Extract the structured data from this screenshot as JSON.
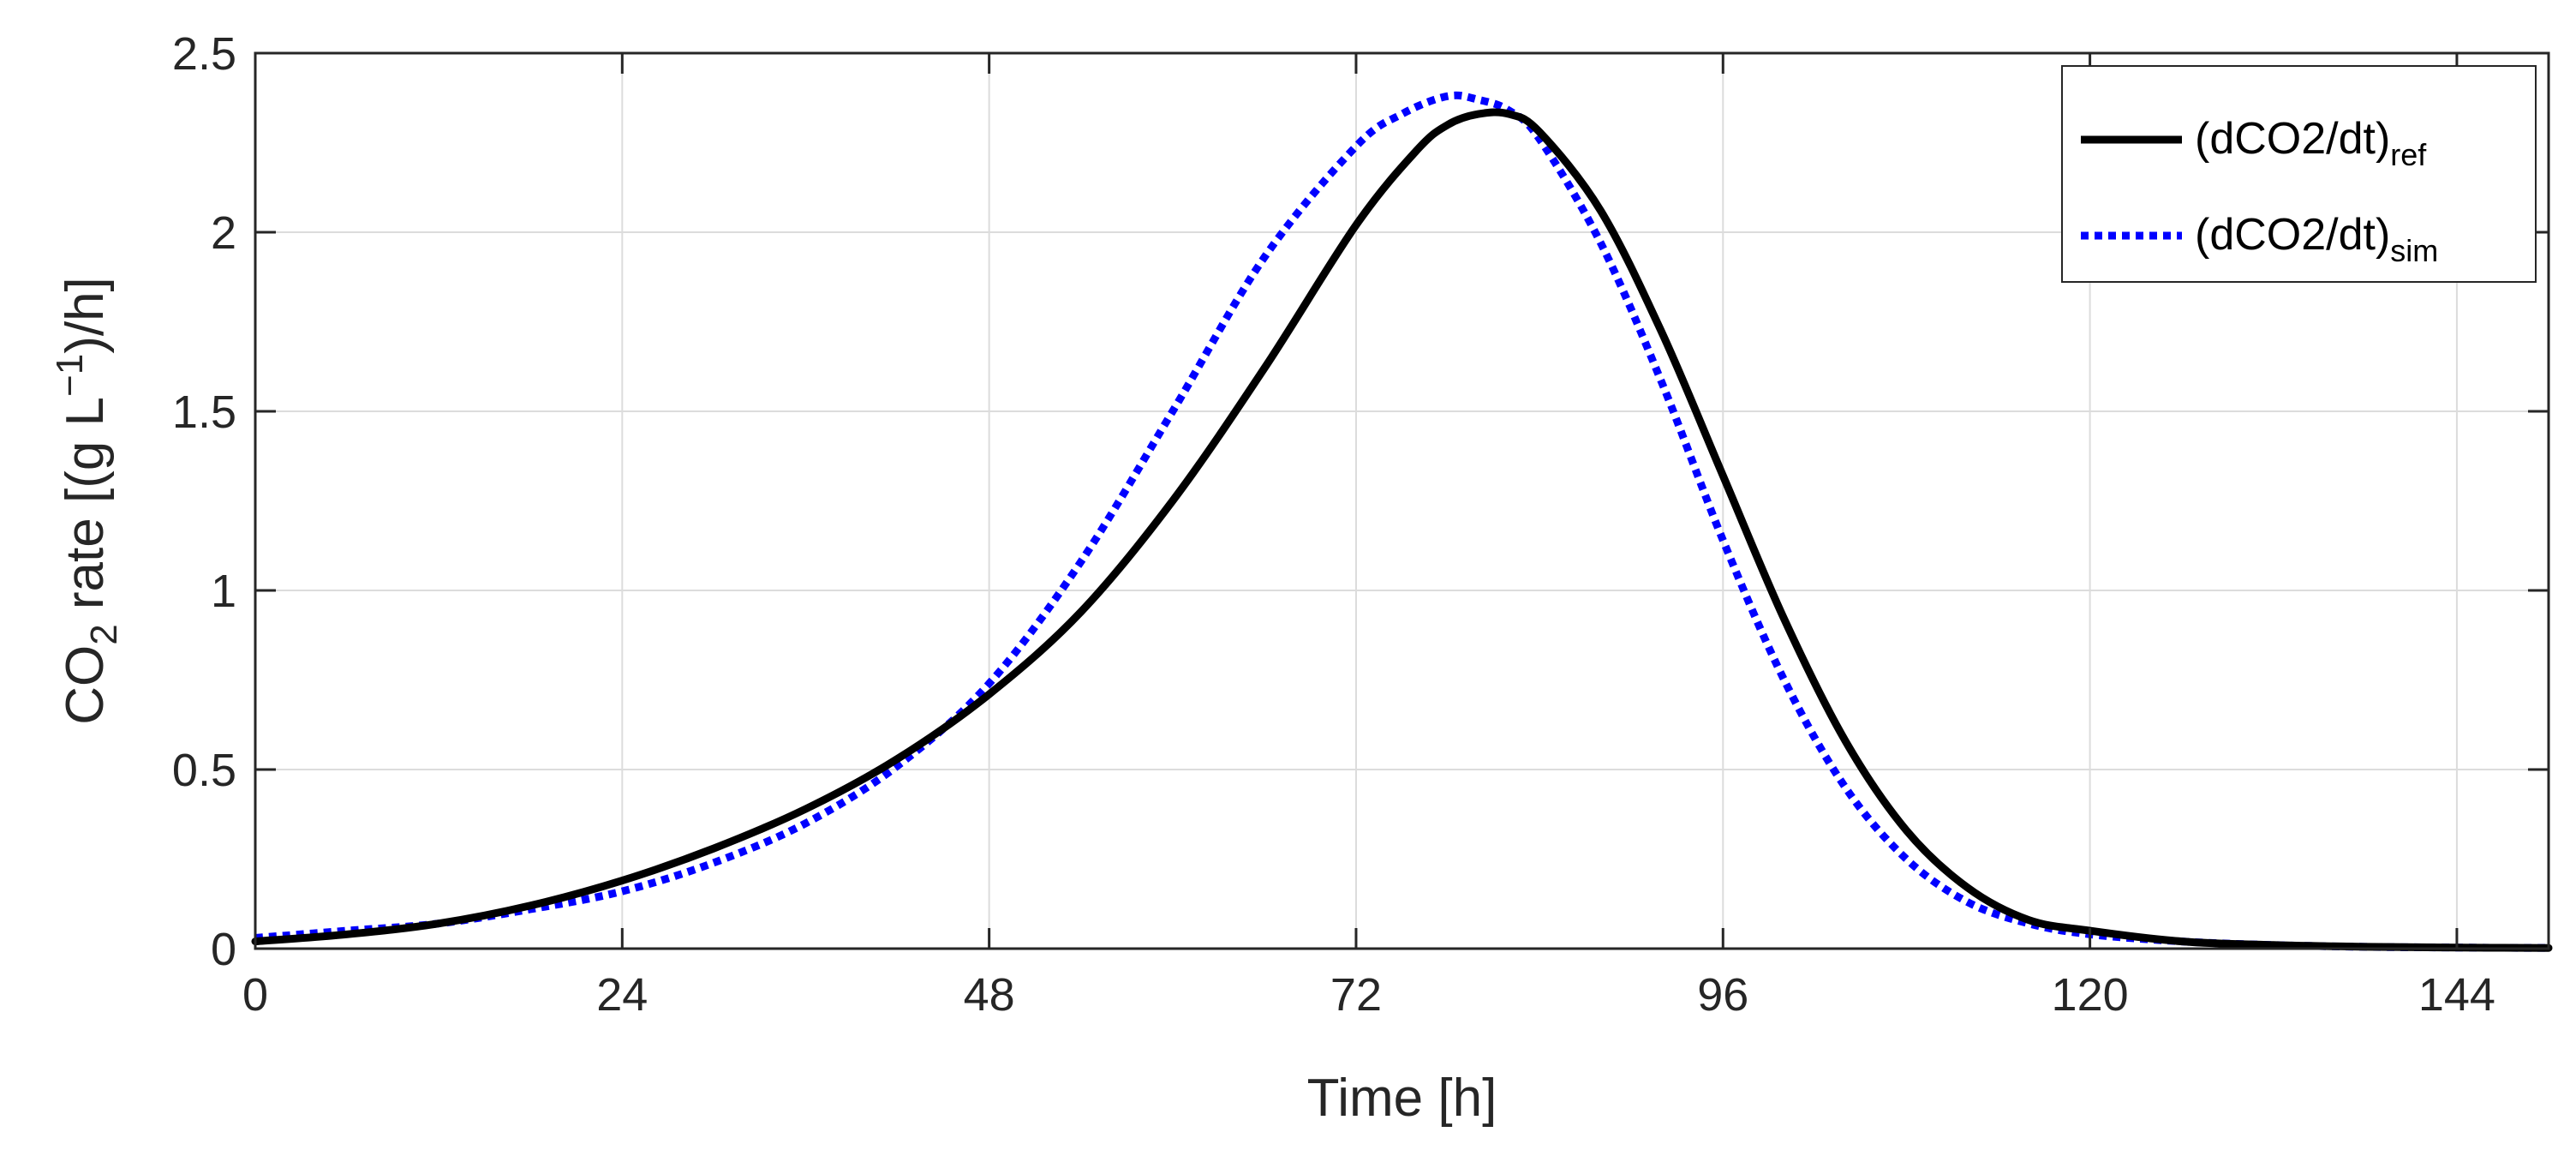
{
  "chart_data": {
    "type": "line",
    "title": "",
    "xlabel": "Time [h]",
    "ylabel": {
      "prefix": "CO",
      "subscript": "2",
      "middle": " rate [(g L",
      "superscript": "−1",
      "suffix": ")/h]"
    },
    "xlim": [
      0,
      150
    ],
    "ylim": [
      0,
      2.5
    ],
    "grid": true,
    "xticks": [
      0,
      24,
      48,
      72,
      96,
      120,
      144
    ],
    "xtick_labels": [
      "0",
      "24",
      "48",
      "72",
      "96",
      "120",
      "144"
    ],
    "yticks": [
      0,
      0.5,
      1,
      1.5,
      2,
      2.5
    ],
    "ytick_labels": [
      "0",
      "0.5",
      "1",
      "1.5",
      "2",
      "2.5"
    ],
    "legend_position": "top-right",
    "series": [
      {
        "name": "(dCO2/dt)ref",
        "legend_main": "(dCO2/dt)",
        "legend_sub": "ref",
        "color": "#000000",
        "style": "solid",
        "x": [
          0,
          6,
          12,
          18,
          24,
          30,
          36,
          42,
          48,
          54,
          60,
          66,
          72,
          76,
          78,
          80,
          82,
          84,
          88,
          92,
          96,
          100,
          104,
          108,
          112,
          116,
          120,
          126,
          132,
          138,
          144,
          150
        ],
        "y": [
          0.02,
          0.04,
          0.07,
          0.12,
          0.19,
          0.28,
          0.39,
          0.53,
          0.71,
          0.94,
          1.25,
          1.62,
          2.02,
          2.23,
          2.3,
          2.33,
          2.33,
          2.28,
          2.06,
          1.72,
          1.32,
          0.92,
          0.58,
          0.33,
          0.17,
          0.08,
          0.05,
          0.02,
          0.01,
          0.005,
          0.003,
          0.002
        ]
      },
      {
        "name": "(dCO2/dt)sim",
        "legend_main": "(dCO2/dt)",
        "legend_sub": "sim",
        "color": "#0000FF",
        "style": "dotted",
        "x": [
          0,
          6,
          12,
          18,
          24,
          30,
          36,
          42,
          48,
          54,
          60,
          66,
          72,
          75,
          78,
          80,
          82,
          84,
          88,
          92,
          96,
          100,
          104,
          108,
          112,
          116,
          120,
          126,
          132,
          138,
          144,
          150
        ],
        "y": [
          0.03,
          0.05,
          0.07,
          0.11,
          0.16,
          0.24,
          0.35,
          0.51,
          0.74,
          1.08,
          1.5,
          1.93,
          2.24,
          2.33,
          2.38,
          2.37,
          2.34,
          2.26,
          1.97,
          1.58,
          1.14,
          0.75,
          0.45,
          0.25,
          0.13,
          0.07,
          0.04,
          0.02,
          0.01,
          0.005,
          0.003,
          0.002
        ]
      }
    ]
  }
}
